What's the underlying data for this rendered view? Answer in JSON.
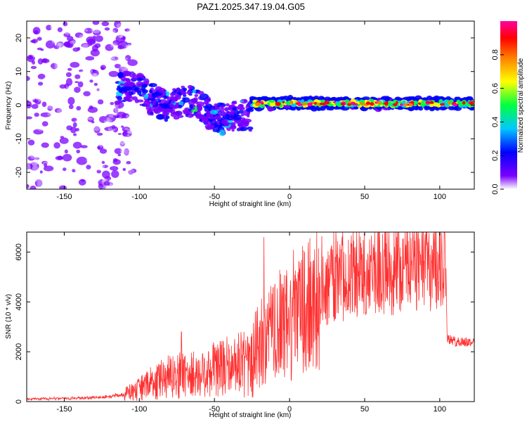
{
  "title": "PAZ1.2025.347.19.04.G05",
  "chart_data": [
    {
      "type": "heatmap",
      "name": "spectrogram",
      "xlabel": "Height of straight line (km)",
      "ylabel": "Frequency (Hz)",
      "xlim": [
        -175,
        123
      ],
      "ylim": [
        -25,
        25
      ],
      "xticks": [
        -150,
        -100,
        -50,
        0,
        50,
        100
      ],
      "yticks": [
        -20,
        -10,
        0,
        10,
        20
      ],
      "colorbar": {
        "label": "Normalized spectral amplitude",
        "range": [
          0,
          1
        ],
        "ticks": [
          "0.0",
          "0.2",
          "0.4",
          "0.6",
          "0.8"
        ],
        "colormap": [
          "#ffffff",
          "#7b00ff",
          "#0000ff",
          "#00c8ff",
          "#00ff40",
          "#ffff00",
          "#ff8000",
          "#ff0000",
          "#ff00a0"
        ]
      },
      "features": {
        "noise_region_x": [
          -175,
          -115
        ],
        "wavy_region_x": [
          -115,
          -25
        ],
        "line_region_x": [
          -25,
          123
        ],
        "line_frequency_hz": 0.5
      }
    },
    {
      "type": "line",
      "name": "snr",
      "xlabel": "Height of straight line (km)",
      "ylabel": "SNR (10 * v/v)",
      "xlim": [
        -175,
        123
      ],
      "ylim": [
        0,
        6800
      ],
      "xticks": [
        -150,
        -100,
        -50,
        0,
        50,
        100
      ],
      "yticks": [
        0,
        2000,
        4000,
        6000
      ],
      "color": "#ff3030",
      "series": [
        {
          "name": "SNR",
          "x": [
            -175,
            -150,
            -125,
            -110,
            -100,
            -90,
            -80,
            -70,
            -60,
            -50,
            -40,
            -30,
            -25,
            -20,
            -15,
            -10,
            -5,
            0,
            5,
            10,
            15,
            20,
            25,
            30,
            40,
            50,
            60,
            70,
            80,
            90,
            95,
            100,
            104,
            105,
            110,
            123
          ],
          "y": [
            100,
            130,
            170,
            300,
            500,
            800,
            1000,
            1100,
            1050,
            1250,
            1400,
            1500,
            1700,
            2200,
            2500,
            2800,
            3000,
            3100,
            3500,
            3500,
            3900,
            4200,
            4500,
            4800,
            5100,
            5200,
            5300,
            5300,
            5400,
            5400,
            5450,
            5400,
            5380,
            2500,
            2400,
            2400
          ]
        }
      ],
      "spikes": [
        {
          "x": -72,
          "y": 2800
        },
        {
          "x": -17,
          "y": 6600
        },
        {
          "x": 10,
          "y": 6000
        },
        {
          "x": 85,
          "y": 6700
        },
        {
          "x": 92,
          "y": 6400
        }
      ]
    }
  ]
}
